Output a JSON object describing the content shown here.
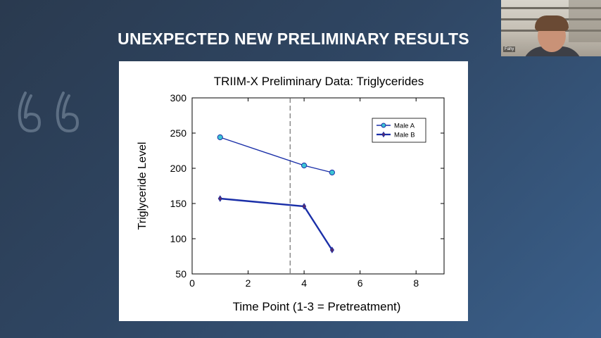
{
  "slide": {
    "title": "UNEXPECTED NEW PRELIMINARY RESULTS",
    "background_colors": [
      "#2a3a4f",
      "#3a5f8a"
    ]
  },
  "decor": {
    "icon": "quote-marks-icon",
    "color": "#5d6f84"
  },
  "webcam": {
    "name": "Fahy",
    "icon": "person-video-icon"
  },
  "chart_data": {
    "type": "line",
    "title": "TRIIM-X Preliminary Data:  Triglycerides",
    "xlabel": "Time Point (1-3 = Pretreatment)",
    "ylabel": "Triglyceride Level",
    "xlim": [
      0,
      9
    ],
    "ylim": [
      50,
      300
    ],
    "xticks": [
      0,
      2,
      4,
      6,
      8
    ],
    "yticks": [
      50,
      100,
      150,
      200,
      250,
      300
    ],
    "grid": false,
    "legend_position": "top-right",
    "reference_line": {
      "x": 3.5,
      "style": "dashed"
    },
    "series": [
      {
        "name": "Male A",
        "x": [
          1,
          4,
          5
        ],
        "y": [
          244,
          204,
          194
        ],
        "color": "#1a2fa8",
        "marker": "circle",
        "marker_fill": "#3cc4d4"
      },
      {
        "name": "Male B",
        "x": [
          1,
          4,
          5
        ],
        "y": [
          157,
          146,
          84
        ],
        "color": "#1a2fa8",
        "marker": "diamond",
        "marker_fill": "#5a2a6a"
      }
    ]
  }
}
